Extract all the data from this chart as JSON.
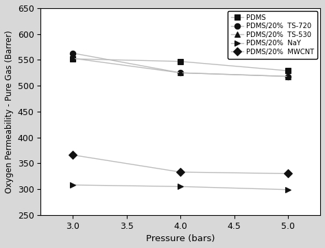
{
  "pressure": [
    3.0,
    4.0,
    5.0
  ],
  "series": [
    {
      "label": "PDMS",
      "values": [
        552,
        547,
        529
      ],
      "marker": "s",
      "color": "#111111",
      "markersize": 6
    },
    {
      "label": "PDMS/20%  TS-720",
      "values": [
        563,
        525,
        518
      ],
      "marker": "o",
      "color": "#111111",
      "markersize": 6
    },
    {
      "label": "PDMS/20%  TS-530",
      "values": [
        553,
        525,
        518
      ],
      "marker": "^",
      "color": "#111111",
      "markersize": 6
    },
    {
      "label": "PDMS/20%  NaY",
      "values": [
        308,
        305,
        299
      ],
      "marker": ">",
      "color": "#111111",
      "markersize": 6
    },
    {
      "label": "PDMS/20%  MWCNT",
      "values": [
        366,
        333,
        330
      ],
      "marker": "D",
      "color": "#111111",
      "markersize": 6
    }
  ],
  "xlabel": "Pressure (bars)",
  "ylabel": "Oxygen Permeability - Pure Gas (Barrer)",
  "xlim": [
    2.7,
    5.3
  ],
  "ylim": [
    250,
    650
  ],
  "xticks": [
    3.0,
    3.5,
    4.0,
    4.5,
    5.0
  ],
  "yticks": [
    250,
    300,
    350,
    400,
    450,
    500,
    550,
    600,
    650
  ],
  "line_color": "#bbbbbb",
  "fig_facecolor": "#d8d8d8",
  "axes_facecolor": "#ffffff"
}
